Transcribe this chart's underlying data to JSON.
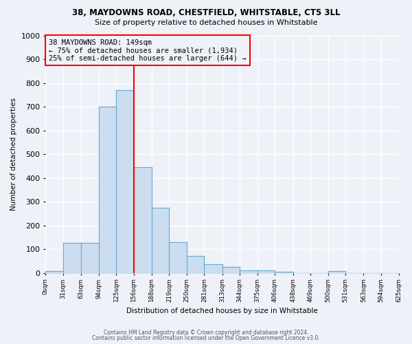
{
  "title1": "38, MAYDOWNS ROAD, CHESTFIELD, WHITSTABLE, CT5 3LL",
  "title2": "Size of property relative to detached houses in Whitstable",
  "xlabel": "Distribution of detached houses by size in Whitstable",
  "ylabel": "Number of detached properties",
  "bar_edges": [
    0,
    31,
    63,
    94,
    125,
    156,
    188,
    219,
    250,
    281,
    313,
    344,
    375,
    406,
    438,
    469,
    500,
    531,
    563,
    594,
    625
  ],
  "bar_heights": [
    7,
    127,
    127,
    700,
    770,
    445,
    275,
    130,
    70,
    38,
    25,
    12,
    12,
    5,
    0,
    0,
    7,
    0,
    0,
    0
  ],
  "bar_color": "#ccddf0",
  "bar_edge_color": "#6aaad4",
  "red_line_x": 156,
  "annotation_text1": "38 MAYDOWNS ROAD: 149sqm",
  "annotation_text2": "← 75% of detached houses are smaller (1,934)",
  "annotation_text3": "25% of semi-detached houses are larger (644) →",
  "ylim": [
    0,
    1000
  ],
  "xlim_min": 0,
  "xlim_max": 625,
  "background_color": "#eef2f8",
  "grid_color": "#ffffff",
  "footer1": "Contains HM Land Registry data © Crown copyright and database right 2024.",
  "footer2": "Contains public sector information licensed under the Open Government Licence v3.0."
}
